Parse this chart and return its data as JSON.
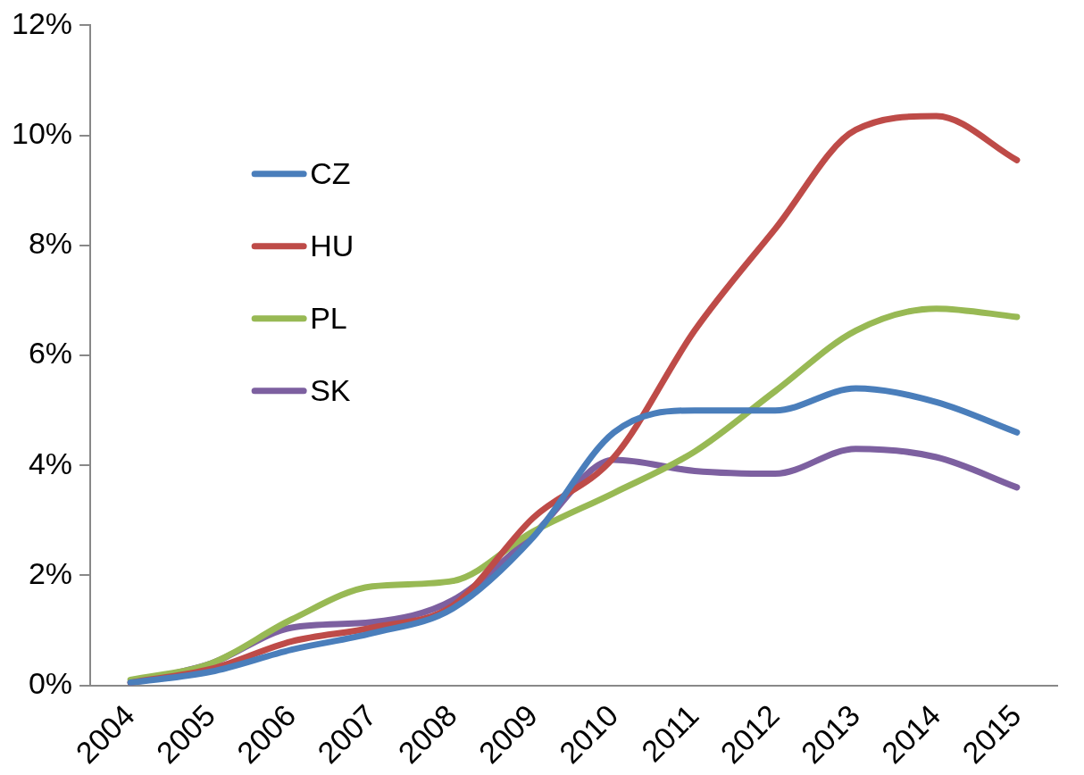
{
  "chart_data": {
    "type": "line",
    "categories": [
      "2004",
      "2005",
      "2006",
      "2007",
      "2008",
      "2009",
      "2010",
      "2011",
      "2012",
      "2013",
      "2014",
      "2015"
    ],
    "series": [
      {
        "name": "CZ",
        "color": "#4a7ebb",
        "values": [
          0.05,
          0.25,
          0.65,
          0.95,
          1.4,
          2.7,
          4.6,
          5.0,
          5.0,
          5.4,
          5.15,
          4.6
        ]
      },
      {
        "name": "HU",
        "color": "#be4b48",
        "values": [
          0.05,
          0.3,
          0.8,
          1.05,
          1.45,
          3.05,
          4.15,
          6.45,
          8.3,
          10.1,
          10.35,
          9.55
        ]
      },
      {
        "name": "PL",
        "color": "#98b954",
        "values": [
          0.1,
          0.4,
          1.2,
          1.8,
          1.9,
          2.8,
          3.5,
          4.25,
          5.35,
          6.45,
          6.85,
          6.7
        ]
      },
      {
        "name": "SK",
        "color": "#7d60a0",
        "values": [
          0.05,
          0.4,
          1.05,
          1.15,
          1.55,
          2.75,
          4.1,
          3.9,
          3.85,
          4.3,
          4.15,
          3.6
        ]
      }
    ],
    "ylim": [
      0,
      12
    ],
    "yticks": [
      {
        "value": 0,
        "label": "0%"
      },
      {
        "value": 2,
        "label": "2%"
      },
      {
        "value": 4,
        "label": "4%"
      },
      {
        "value": 6,
        "label": "6%"
      },
      {
        "value": 8,
        "label": "8%"
      },
      {
        "value": 10,
        "label": "10%"
      },
      {
        "value": 12,
        "label": "12%"
      }
    ],
    "grid": false,
    "legend": "top left",
    "marker": "none",
    "line_style": "solid"
  }
}
